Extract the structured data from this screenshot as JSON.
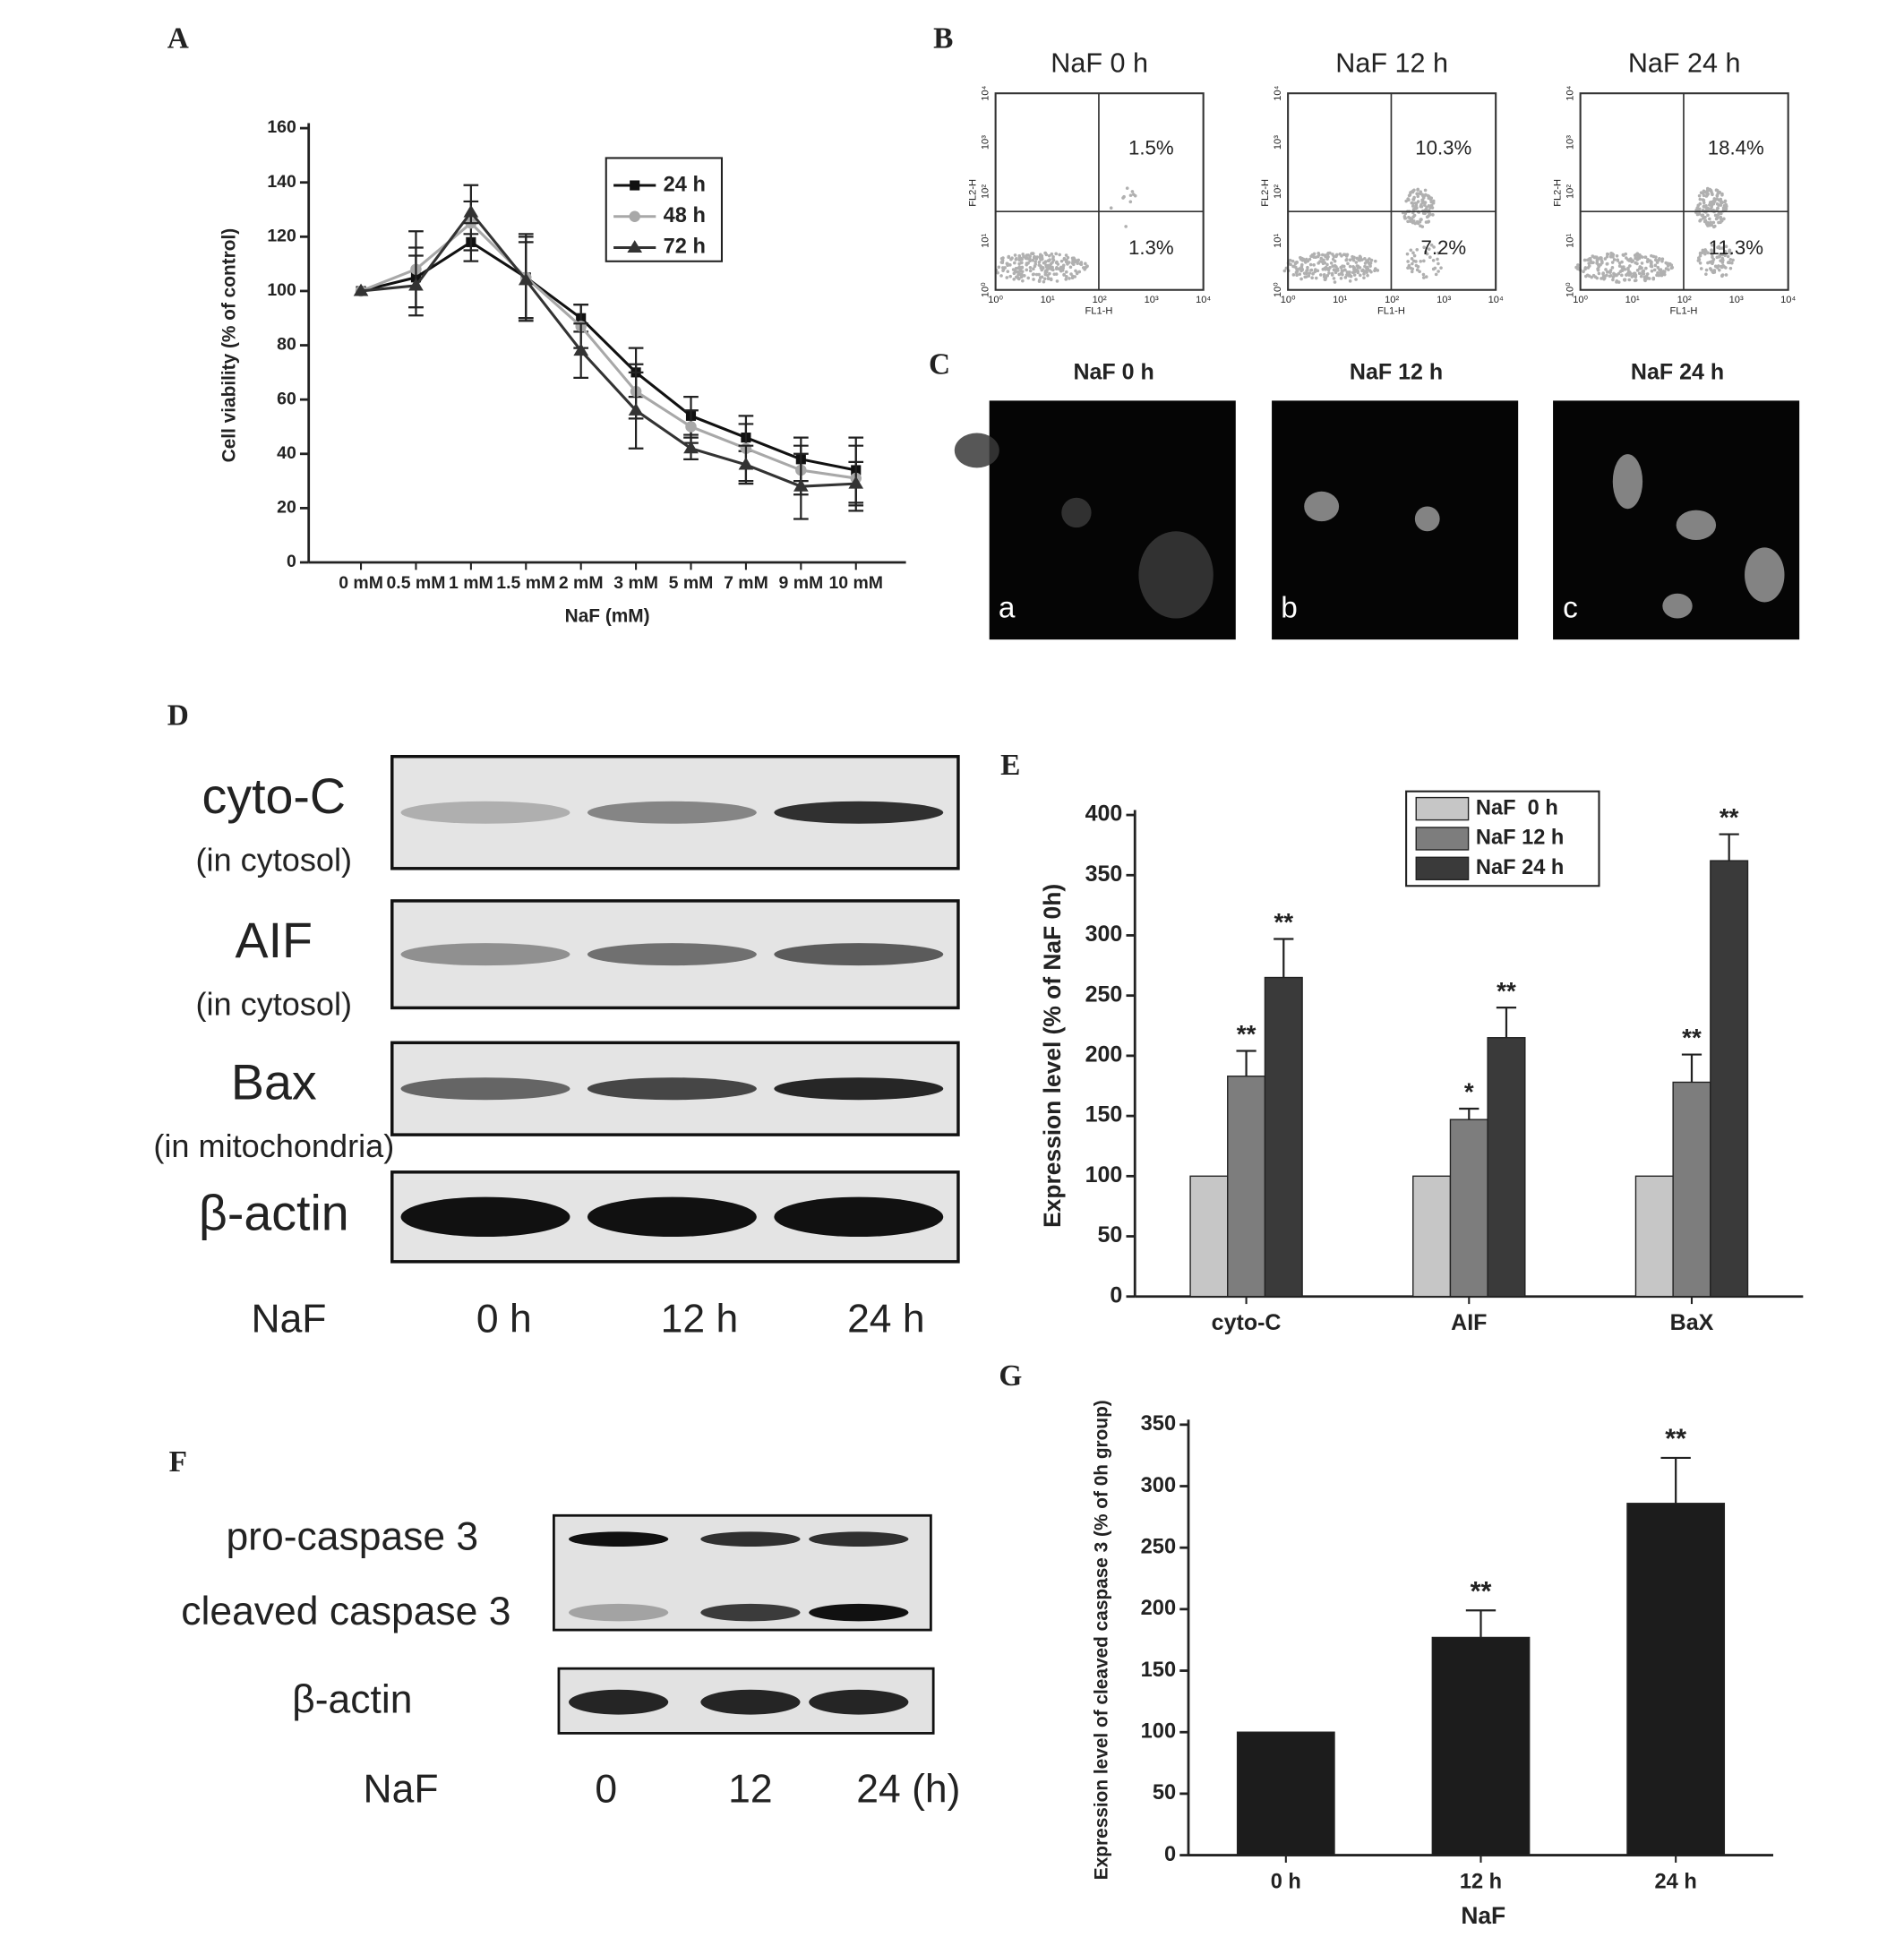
{
  "panel_labels": [
    "A",
    "B",
    "C",
    "D",
    "E",
    "F",
    "G"
  ],
  "chart_data": [
    {
      "type": "line",
      "categories": [
        "0 mM",
        "0.5 mM",
        "1 mM",
        "1.5 mM",
        "2 mM",
        "3 mM",
        "5 mM",
        "7 mM",
        "9 mM",
        "10 mM"
      ],
      "y_label": "Cell viability (% of control)",
      "x_label": "NaF (mM)",
      "ylim": [
        0,
        160
      ],
      "yticks": [
        0,
        20,
        40,
        60,
        80,
        100,
        120,
        140,
        160
      ],
      "series": [
        {
          "name": "24 h",
          "color": "#111111",
          "marker": "square",
          "values": [
            100,
            105,
            118,
            105,
            90,
            70,
            54,
            46,
            38,
            34
          ],
          "errors": [
            null,
            11,
            3,
            16,
            5,
            9,
            7,
            5,
            8,
            12
          ]
        },
        {
          "name": "48 h",
          "color": "#a8a8a8",
          "marker": "circle",
          "values": [
            100,
            108,
            125,
            105,
            87,
            63,
            50,
            42,
            34,
            31
          ],
          "errors": [
            null,
            14,
            14,
            15,
            8,
            10,
            6,
            12,
            9,
            12
          ]
        },
        {
          "name": "72 h",
          "color": "#333333",
          "marker": "triangle",
          "values": [
            100,
            102,
            129,
            104,
            78,
            56,
            42,
            36,
            28,
            29
          ],
          "errors": [
            null,
            11,
            4,
            14,
            10,
            14,
            4,
            7,
            12,
            8
          ]
        }
      ]
    },
    {
      "type": "bar",
      "categories": [
        "cyto-C",
        "AIF",
        "BaX"
      ],
      "y_label": "Expression level (% of NaF 0h)",
      "ylim": [
        0,
        400
      ],
      "yticks": [
        0,
        50,
        100,
        150,
        200,
        250,
        300,
        350,
        400
      ],
      "series": [
        {
          "name": "NaF  0 h",
          "color": "#c6c6c6",
          "values": [
            100,
            100,
            100
          ],
          "errors": [
            null,
            null,
            null
          ],
          "significance": [
            null,
            null,
            null
          ]
        },
        {
          "name": "NaF 12 h",
          "color": "#7d7d7d",
          "values": [
            183,
            147,
            178
          ],
          "errors": [
            21,
            9,
            23
          ],
          "significance": [
            "**",
            "*",
            "**"
          ]
        },
        {
          "name": "NaF 24 h",
          "color": "#3a3a3a",
          "values": [
            265,
            215,
            362
          ],
          "errors": [
            32,
            25,
            22
          ],
          "significance": [
            "**",
            "**",
            "**"
          ]
        }
      ]
    },
    {
      "type": "bar",
      "categories": [
        "0 h",
        "12 h",
        "24 h"
      ],
      "y_label": "Expression level of cleaved caspase 3 (% of 0h group)",
      "x_label": "NaF",
      "ylim": [
        0,
        350
      ],
      "yticks": [
        0,
        50,
        100,
        150,
        200,
        250,
        300,
        350
      ],
      "series": [
        {
          "color": "#1c1c1c",
          "values": [
            100,
            177,
            286
          ],
          "errors": [
            null,
            22,
            37
          ],
          "significance": [
            null,
            "**",
            "**"
          ]
        }
      ]
    }
  ],
  "flow_cytometry": {
    "x_axis_label": "FL1-H",
    "y_axis_label": "FL2-H",
    "tick_labels": [
      "10⁰",
      "10¹",
      "10²",
      "10³",
      "10⁴"
    ],
    "panels": [
      {
        "title": "NaF 0 h",
        "upper_right": "1.5%",
        "lower_right": "1.3%"
      },
      {
        "title": "NaF 12 h",
        "upper_right": "10.3%",
        "lower_right": "7.2%"
      },
      {
        "title": "NaF 24 h",
        "upper_right": "18.4%",
        "lower_right": "11.3%"
      }
    ]
  },
  "fluorescence": {
    "panels": [
      {
        "title": "NaF 0 h",
        "letter": "a"
      },
      {
        "title": "NaF 12 h",
        "letter": "b"
      },
      {
        "title": "NaF 24 h",
        "letter": "c"
      }
    ]
  },
  "western_blot_d": {
    "rows": [
      {
        "name": "cyto-C",
        "location": "(in cytosol)"
      },
      {
        "name": "AIF",
        "location": "(in cytosol)"
      },
      {
        "name": "Bax",
        "location": "(in mitochondria)"
      },
      {
        "name": "β-actin"
      }
    ],
    "lanes": [
      "NaF",
      "0 h",
      "12 h",
      "24 h"
    ]
  },
  "western_blot_f": {
    "rows": [
      "pro-caspase 3",
      "cleaved caspase 3",
      "β-actin"
    ],
    "lanes": [
      "NaF",
      "0",
      "12",
      "24 (h)"
    ]
  }
}
